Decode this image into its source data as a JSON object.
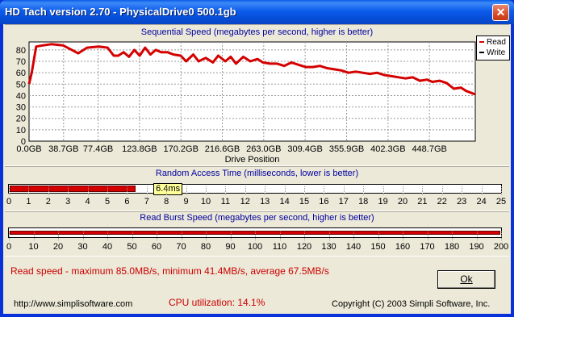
{
  "window": {
    "title": "HD Tach version 2.70 - PhysicalDrive0 500.1gb",
    "close_glyph": "✕"
  },
  "sequential": {
    "title": "Sequential Speed (megabytes per second, higher is better)",
    "xlabel": "Drive Position",
    "legend": [
      {
        "label": "Read",
        "color": "#d40000"
      },
      {
        "label": "Write",
        "color": "#000000"
      }
    ]
  },
  "random": {
    "title": "Random Access Time (milliseconds, lower is better)",
    "value_ms": 6.4,
    "value_label": "6.4ms",
    "max": 25,
    "ticks": [
      "0",
      "1",
      "2",
      "3",
      "4",
      "5",
      "6",
      "7",
      "8",
      "9",
      "10",
      "11",
      "12",
      "13",
      "14",
      "15",
      "16",
      "17",
      "18",
      "19",
      "20",
      "21",
      "22",
      "23",
      "24",
      "25"
    ]
  },
  "burst": {
    "title": "Read Burst Speed (megabytes per second, higher is better)",
    "value": 200,
    "max": 200,
    "ticks": [
      "0",
      "10",
      "20",
      "30",
      "40",
      "50",
      "60",
      "70",
      "80",
      "90",
      "100",
      "110",
      "120",
      "130",
      "140",
      "150",
      "160",
      "170",
      "180",
      "190",
      "200"
    ]
  },
  "summary": {
    "read_speed": "Read speed - maximum 85.0MB/s, minimum 41.4MB/s, average 67.5MB/s",
    "cpu": "CPU utilization: 14.1%",
    "ok_label": "Ok",
    "url": "http://www.simplisoftware.com",
    "copyright": "Copyright (C) 2003 Simpli Software, Inc."
  },
  "chart_data": {
    "type": "line",
    "title": "Sequential Speed (megabytes per second, higher is better)",
    "xlabel": "Drive Position",
    "ylabel": "",
    "x_ticks": [
      "0.0GB",
      "38.7GB",
      "77.4GB",
      "123.8GB",
      "170.2GB",
      "216.6GB",
      "263.0GB",
      "309.4GB",
      "355.9GB",
      "402.3GB",
      "448.7GB"
    ],
    "x_tick_values": [
      0,
      38.7,
      77.4,
      123.8,
      170.2,
      216.6,
      263.0,
      309.4,
      355.9,
      402.3,
      448.7
    ],
    "y_ticks": [
      0,
      10,
      20,
      30,
      40,
      50,
      60,
      70,
      80
    ],
    "xlim": [
      0,
      500.1
    ],
    "ylim": [
      0,
      87
    ],
    "grid": true,
    "legend_position": "top-right",
    "series": [
      {
        "name": "Read",
        "x": [
          0,
          3,
          8,
          16,
          25,
          38,
          48,
          55,
          65,
          78,
          88,
          95,
          100,
          106,
          112,
          118,
          124,
          130,
          136,
          142,
          148,
          155,
          162,
          170,
          176,
          184,
          190,
          198,
          206,
          212,
          220,
          226,
          232,
          240,
          248,
          256,
          262,
          270,
          278,
          286,
          294,
          302,
          310,
          318,
          326,
          334,
          342,
          350,
          358,
          366,
          374,
          382,
          390,
          398,
          406,
          414,
          422,
          430,
          438,
          446,
          452,
          460,
          468,
          476,
          484,
          490,
          500.1
        ],
        "values": [
          50,
          60,
          83,
          84,
          85,
          84,
          80,
          77,
          82,
          83,
          82,
          75,
          75,
          78,
          74,
          80,
          75,
          82,
          76,
          80,
          78,
          78,
          76,
          75,
          70,
          76,
          70,
          73,
          69,
          75,
          70,
          74,
          68,
          74,
          70,
          72,
          69,
          68,
          68,
          66,
          69,
          67,
          65,
          65,
          66,
          64,
          63,
          62,
          60,
          61,
          60,
          59,
          60,
          58,
          57,
          56,
          55,
          56,
          53,
          54,
          52,
          53,
          51,
          46,
          47,
          44,
          41
        ]
      },
      {
        "name": "Write",
        "x": [],
        "values": []
      }
    ]
  }
}
